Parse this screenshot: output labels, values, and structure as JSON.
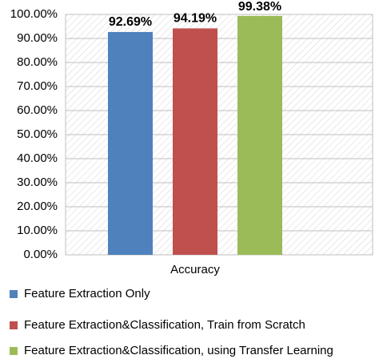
{
  "chart_data": {
    "type": "bar",
    "categories": [
      "Accuracy"
    ],
    "series": [
      {
        "name": "Feature Extraction Only",
        "color": "#4f81bd",
        "values": [
          92.69
        ],
        "value_labels": [
          "92.69%"
        ]
      },
      {
        "name": "Feature Extraction&Classification, Train from Scratch",
        "color": "#c0504d",
        "values": [
          94.19
        ],
        "value_labels": [
          "94.19%"
        ]
      },
      {
        "name": "Feature Extraction&Classification, using Transfer Learning",
        "color": "#9bbb59",
        "values": [
          99.38
        ],
        "value_labels": [
          "99.38%"
        ]
      }
    ],
    "ylim": [
      0,
      100
    ],
    "yticks": [
      {
        "value": 0,
        "label": "0.00%"
      },
      {
        "value": 10,
        "label": "10.00%"
      },
      {
        "value": 20,
        "label": "20.00%"
      },
      {
        "value": 30,
        "label": "30.00%"
      },
      {
        "value": 40,
        "label": "40.00%"
      },
      {
        "value": 50,
        "label": "50.00%"
      },
      {
        "value": 60,
        "label": "60.00%"
      },
      {
        "value": 70,
        "label": "70.00%"
      },
      {
        "value": 80,
        "label": "80.00%"
      },
      {
        "value": 90,
        "label": "90.00%"
      },
      {
        "value": 100,
        "label": "100.00%"
      }
    ],
    "grid": true,
    "legend": "bottom"
  }
}
